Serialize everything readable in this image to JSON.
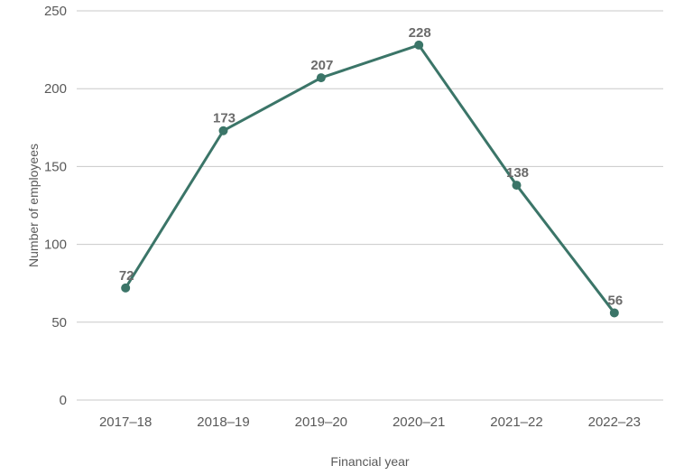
{
  "chart_data": {
    "type": "line",
    "title": "",
    "xlabel": "Financial year",
    "ylabel": "Number of employees",
    "categories": [
      "2017–18",
      "2018–19",
      "2019–20",
      "2020–21",
      "2021–22",
      "2022–23"
    ],
    "series": [
      {
        "values": [
          72,
          173,
          207,
          228,
          138,
          56
        ],
        "color": "#3b7568"
      }
    ],
    "data_labels": [
      "72",
      "173",
      "207",
      "228",
      "138",
      "56"
    ],
    "ylim": [
      0,
      250
    ],
    "yticks": [
      "0",
      "50",
      "100",
      "150",
      "200",
      "250"
    ],
    "grid": "horizontal",
    "legend": "none"
  }
}
